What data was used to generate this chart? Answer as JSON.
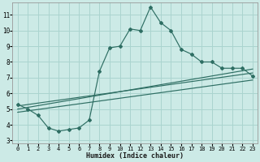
{
  "xlabel": "Humidex (Indice chaleur)",
  "bg_color": "#cceae6",
  "grid_color": "#aad4cf",
  "line_color": "#2e6e63",
  "xlim": [
    -0.5,
    23.5
  ],
  "ylim": [
    2.8,
    11.8
  ],
  "yticks": [
    3,
    4,
    5,
    6,
    7,
    8,
    9,
    10,
    11
  ],
  "xticks": [
    0,
    1,
    2,
    3,
    4,
    5,
    6,
    7,
    8,
    9,
    10,
    11,
    12,
    13,
    14,
    15,
    16,
    17,
    18,
    19,
    20,
    21,
    22,
    23
  ],
  "main_line_x": [
    0,
    1,
    2,
    3,
    4,
    5,
    6,
    7,
    8,
    9,
    10,
    11,
    12,
    13,
    14,
    15,
    16,
    17,
    18,
    19,
    20,
    21,
    22,
    23
  ],
  "main_line_y": [
    5.3,
    5.0,
    4.6,
    3.8,
    3.6,
    3.7,
    3.8,
    4.3,
    7.4,
    8.9,
    9.0,
    10.1,
    10.0,
    11.5,
    10.5,
    10.0,
    8.8,
    8.5,
    8.0,
    8.0,
    7.6,
    7.6,
    7.6,
    7.1
  ],
  "reg_lines": [
    {
      "x": [
        0,
        23
      ],
      "y": [
        5.2,
        7.3
      ]
    },
    {
      "x": [
        0,
        23
      ],
      "y": [
        5.0,
        7.55
      ]
    },
    {
      "x": [
        0,
        23
      ],
      "y": [
        4.8,
        6.85
      ]
    }
  ]
}
